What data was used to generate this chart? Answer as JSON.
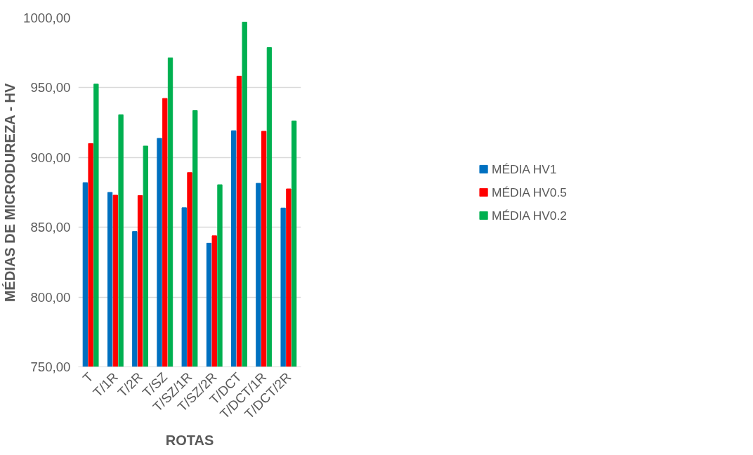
{
  "chart_data": {
    "type": "bar",
    "xlabel": "ROTAS",
    "ylabel": "MÉDIAS DE MICRODUREZA - HV",
    "categories": [
      "T",
      "T/1R",
      "T/2R",
      "T/SZ",
      "T/SZ/1R",
      "T/SZ/2R",
      "T/DCT",
      "T/DCT/1R",
      "T/DCT/2R"
    ],
    "series": [
      {
        "name": "MÉDIA HV1",
        "color": "#0070c0",
        "values": [
          882,
          875,
          847,
          913.7,
          864,
          838.6,
          919.2,
          881.5,
          863.8
        ]
      },
      {
        "name": "MÉDIA HV0.5",
        "color": "#ff0000",
        "values": [
          910,
          873,
          872.7,
          942.3,
          889.2,
          843.9,
          958.3,
          918.8,
          877.5
        ]
      },
      {
        "name": "MÉDIA HV0.2",
        "color": "#00b050",
        "values": [
          952.6,
          930.6,
          908.2,
          971.4,
          933.6,
          880.5,
          997,
          978.8,
          926.2
        ]
      }
    ],
    "ylim": [
      750,
      1000
    ],
    "yticks": [
      {
        "value": 750,
        "label": "750,00"
      },
      {
        "value": 800,
        "label": "800,00"
      },
      {
        "value": 850,
        "label": "850,00"
      },
      {
        "value": 900,
        "label": "900,00"
      },
      {
        "value": 950,
        "label": "950,00"
      },
      {
        "value": 1000,
        "label": "1000,00"
      }
    ],
    "grid": "y",
    "legend": "right"
  }
}
